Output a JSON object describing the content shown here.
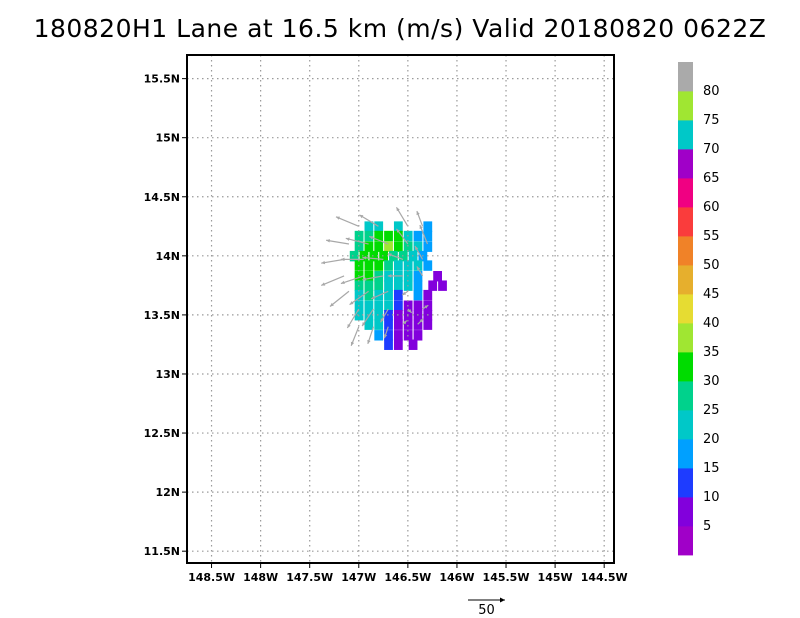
{
  "title": "180820H1 Lane at 16.5 km (m/s) Valid 20180820 0622Z",
  "chart_data": {
    "type": "heatmap",
    "title": "180820H1 Lane at 16.5 km (m/s) Valid 20180820 0622Z",
    "variable": "wind speed",
    "units": "m/s",
    "x_ticks": [
      "148.5W",
      "148W",
      "147.5W",
      "147W",
      "146.5W",
      "146W",
      "145.5W",
      "145W",
      "144.5W"
    ],
    "y_ticks": [
      "11.5N",
      "12N",
      "12.5N",
      "13N",
      "13.5N",
      "14N",
      "14.5N",
      "15N",
      "15.5N"
    ],
    "xlim": [
      -148.75,
      -144.4
    ],
    "ylim": [
      11.4,
      15.7
    ],
    "grid": true,
    "colorbar": {
      "placement": "right",
      "labels": [
        "5",
        "10",
        "15",
        "20",
        "25",
        "30",
        "35",
        "40",
        "45",
        "50",
        "55",
        "60",
        "65",
        "70",
        "75",
        "80"
      ],
      "colors": [
        "#a000c8",
        "#8200dc",
        "#1e3cff",
        "#00a0ff",
        "#00c8c8",
        "#00d28c",
        "#00dc00",
        "#a0e632",
        "#e6dc32",
        "#e6af2d",
        "#f08228",
        "#fa3c3c",
        "#f00082",
        "#a000c8",
        "#00c8c8",
        "#a0e632",
        "#aaaaaa"
      ]
    },
    "wind_vectors": {
      "color": "#a8a8a8",
      "reference_vector_label": "50",
      "reference_vector_value": 50
    },
    "cells": {
      "dx": 0.0833,
      "dy": 0.0833,
      "values": [
        {
          "lon": -146.9,
          "lat": 14.25,
          "v": 24
        },
        {
          "lon": -146.8,
          "lat": 14.25,
          "v": 22
        },
        {
          "lon": -146.6,
          "lat": 14.25,
          "v": 22
        },
        {
          "lon": -146.3,
          "lat": 14.25,
          "v": 18
        },
        {
          "lon": -147.0,
          "lat": 14.17,
          "v": 26
        },
        {
          "lon": -146.9,
          "lat": 14.17,
          "v": 28
        },
        {
          "lon": -146.8,
          "lat": 14.17,
          "v": 30
        },
        {
          "lon": -146.7,
          "lat": 14.17,
          "v": 32
        },
        {
          "lon": -146.6,
          "lat": 14.17,
          "v": 30
        },
        {
          "lon": -146.5,
          "lat": 14.17,
          "v": 24
        },
        {
          "lon": -146.4,
          "lat": 14.17,
          "v": 18
        },
        {
          "lon": -146.3,
          "lat": 14.17,
          "v": 16
        },
        {
          "lon": -147.0,
          "lat": 14.08,
          "v": 28
        },
        {
          "lon": -146.9,
          "lat": 14.08,
          "v": 30
        },
        {
          "lon": -146.8,
          "lat": 14.08,
          "v": 33
        },
        {
          "lon": -146.7,
          "lat": 14.08,
          "v": 36
        },
        {
          "lon": -146.6,
          "lat": 14.08,
          "v": 34
        },
        {
          "lon": -146.5,
          "lat": 14.08,
          "v": 26
        },
        {
          "lon": -146.4,
          "lat": 14.08,
          "v": 20
        },
        {
          "lon": -146.3,
          "lat": 14.08,
          "v": 16
        },
        {
          "lon": -147.05,
          "lat": 14.0,
          "v": 26
        },
        {
          "lon": -146.95,
          "lat": 14.0,
          "v": 32
        },
        {
          "lon": -146.85,
          "lat": 14.0,
          "v": 31
        },
        {
          "lon": -146.75,
          "lat": 14.0,
          "v": 30
        },
        {
          "lon": -146.65,
          "lat": 14.0,
          "v": 28
        },
        {
          "lon": -146.55,
          "lat": 14.0,
          "v": 25
        },
        {
          "lon": -146.45,
          "lat": 14.0,
          "v": 22
        },
        {
          "lon": -146.35,
          "lat": 14.0,
          "v": 18
        },
        {
          "lon": -147.0,
          "lat": 13.92,
          "v": 30
        },
        {
          "lon": -146.9,
          "lat": 13.92,
          "v": 32
        },
        {
          "lon": -146.8,
          "lat": 13.92,
          "v": 30
        },
        {
          "lon": -146.7,
          "lat": 13.92,
          "v": 26
        },
        {
          "lon": -146.6,
          "lat": 13.92,
          "v": 24
        },
        {
          "lon": -146.5,
          "lat": 13.92,
          "v": 22
        },
        {
          "lon": -146.4,
          "lat": 13.92,
          "v": 20
        },
        {
          "lon": -146.3,
          "lat": 13.92,
          "v": 17
        },
        {
          "lon": -147.0,
          "lat": 13.83,
          "v": 31
        },
        {
          "lon": -146.9,
          "lat": 13.83,
          "v": 30
        },
        {
          "lon": -146.8,
          "lat": 13.83,
          "v": 28
        },
        {
          "lon": -146.7,
          "lat": 13.83,
          "v": 24
        },
        {
          "lon": -146.6,
          "lat": 13.83,
          "v": 22
        },
        {
          "lon": -146.5,
          "lat": 13.83,
          "v": 21
        },
        {
          "lon": -146.4,
          "lat": 13.83,
          "v": 19
        },
        {
          "lon": -146.2,
          "lat": 13.83,
          "v": 8
        },
        {
          "lon": -147.0,
          "lat": 13.75,
          "v": 28
        },
        {
          "lon": -146.9,
          "lat": 13.75,
          "v": 26
        },
        {
          "lon": -146.8,
          "lat": 13.75,
          "v": 25
        },
        {
          "lon": -146.7,
          "lat": 13.75,
          "v": 23
        },
        {
          "lon": -146.6,
          "lat": 13.75,
          "v": 20
        },
        {
          "lon": -146.5,
          "lat": 13.75,
          "v": 22
        },
        {
          "lon": -146.4,
          "lat": 13.75,
          "v": 16
        },
        {
          "lon": -146.25,
          "lat": 13.75,
          "v": 8
        },
        {
          "lon": -146.15,
          "lat": 13.75,
          "v": 7
        },
        {
          "lon": -147.0,
          "lat": 13.67,
          "v": 24
        },
        {
          "lon": -146.9,
          "lat": 13.67,
          "v": 25
        },
        {
          "lon": -146.8,
          "lat": 13.67,
          "v": 24
        },
        {
          "lon": -146.7,
          "lat": 13.67,
          "v": 22
        },
        {
          "lon": -146.6,
          "lat": 13.67,
          "v": 12
        },
        {
          "lon": -146.4,
          "lat": 13.67,
          "v": 18
        },
        {
          "lon": -146.3,
          "lat": 13.67,
          "v": 8
        },
        {
          "lon": -147.0,
          "lat": 13.58,
          "v": 24
        },
        {
          "lon": -146.9,
          "lat": 13.58,
          "v": 23
        },
        {
          "lon": -146.8,
          "lat": 13.58,
          "v": 22
        },
        {
          "lon": -146.7,
          "lat": 13.58,
          "v": 20
        },
        {
          "lon": -146.6,
          "lat": 13.58,
          "v": 10
        },
        {
          "lon": -146.5,
          "lat": 13.58,
          "v": 7
        },
        {
          "lon": -146.4,
          "lat": 13.58,
          "v": 6
        },
        {
          "lon": -146.3,
          "lat": 13.58,
          "v": 6
        },
        {
          "lon": -147.0,
          "lat": 13.5,
          "v": 23
        },
        {
          "lon": -146.9,
          "lat": 13.5,
          "v": 22
        },
        {
          "lon": -146.8,
          "lat": 13.5,
          "v": 20
        },
        {
          "lon": -146.7,
          "lat": 13.5,
          "v": 12
        },
        {
          "lon": -146.6,
          "lat": 13.5,
          "v": 7
        },
        {
          "lon": -146.5,
          "lat": 13.5,
          "v": 6
        },
        {
          "lon": -146.4,
          "lat": 13.5,
          "v": 6
        },
        {
          "lon": -146.3,
          "lat": 13.5,
          "v": 7
        },
        {
          "lon": -146.9,
          "lat": 13.42,
          "v": 22
        },
        {
          "lon": -146.8,
          "lat": 13.42,
          "v": 20
        },
        {
          "lon": -146.7,
          "lat": 13.42,
          "v": 11
        },
        {
          "lon": -146.6,
          "lat": 13.42,
          "v": 7
        },
        {
          "lon": -146.5,
          "lat": 13.42,
          "v": 6
        },
        {
          "lon": -146.4,
          "lat": 13.42,
          "v": 6
        },
        {
          "lon": -146.3,
          "lat": 13.42,
          "v": 7
        },
        {
          "lon": -146.8,
          "lat": 13.33,
          "v": 18
        },
        {
          "lon": -146.7,
          "lat": 13.33,
          "v": 12
        },
        {
          "lon": -146.6,
          "lat": 13.33,
          "v": 7
        },
        {
          "lon": -146.5,
          "lat": 13.33,
          "v": 6
        },
        {
          "lon": -146.4,
          "lat": 13.33,
          "v": 7
        },
        {
          "lon": -146.7,
          "lat": 13.25,
          "v": 10
        },
        {
          "lon": -146.6,
          "lat": 13.25,
          "v": 7
        },
        {
          "lon": -146.45,
          "lat": 13.25,
          "v": 8
        }
      ]
    },
    "vectors": [
      {
        "lon": -147.0,
        "lat": 14.25,
        "u": -12,
        "v": 5
      },
      {
        "lon": -146.8,
        "lat": 14.25,
        "u": -10,
        "v": 6
      },
      {
        "lon": -146.5,
        "lat": 14.25,
        "u": -6,
        "v": 10
      },
      {
        "lon": -146.35,
        "lat": 14.25,
        "u": -3,
        "v": 8
      },
      {
        "lon": -147.1,
        "lat": 14.1,
        "u": -12,
        "v": 2
      },
      {
        "lon": -146.9,
        "lat": 14.1,
        "u": -12,
        "v": 3
      },
      {
        "lon": -146.7,
        "lat": 14.1,
        "u": -10,
        "v": 4
      },
      {
        "lon": -146.5,
        "lat": 14.1,
        "u": -6,
        "v": 8
      },
      {
        "lon": -146.3,
        "lat": 14.1,
        "u": -4,
        "v": 10
      },
      {
        "lon": -147.15,
        "lat": 13.97,
        "u": -12,
        "v": -2
      },
      {
        "lon": -146.95,
        "lat": 13.97,
        "u": -12,
        "v": 0
      },
      {
        "lon": -146.75,
        "lat": 13.97,
        "u": -11,
        "v": 1
      },
      {
        "lon": -146.55,
        "lat": 13.97,
        "u": -8,
        "v": 3
      },
      {
        "lon": -146.35,
        "lat": 13.97,
        "u": -4,
        "v": 7
      },
      {
        "lon": -147.15,
        "lat": 13.83,
        "u": -12,
        "v": -5
      },
      {
        "lon": -146.95,
        "lat": 13.83,
        "u": -12,
        "v": -4
      },
      {
        "lon": -146.75,
        "lat": 13.83,
        "u": -11,
        "v": -2
      },
      {
        "lon": -146.55,
        "lat": 13.83,
        "u": -8,
        "v": 0
      },
      {
        "lon": -146.35,
        "lat": 13.83,
        "u": -3,
        "v": 5
      },
      {
        "lon": -147.1,
        "lat": 13.7,
        "u": -10,
        "v": -8
      },
      {
        "lon": -146.9,
        "lat": 13.7,
        "u": -10,
        "v": -7
      },
      {
        "lon": -146.7,
        "lat": 13.7,
        "u": -9,
        "v": -4
      },
      {
        "lon": -146.5,
        "lat": 13.7,
        "u": -3,
        "v": -2
      },
      {
        "lon": -147.0,
        "lat": 13.55,
        "u": -6,
        "v": -10
      },
      {
        "lon": -146.85,
        "lat": 13.55,
        "u": -6,
        "v": -9
      },
      {
        "lon": -146.7,
        "lat": 13.55,
        "u": -4,
        "v": -7
      },
      {
        "lon": -146.5,
        "lat": 13.55,
        "u": 2,
        "v": -2
      },
      {
        "lon": -146.35,
        "lat": 13.55,
        "u": 3,
        "v": 2
      },
      {
        "lon": -147.0,
        "lat": 13.4,
        "u": -4,
        "v": -10
      },
      {
        "lon": -146.85,
        "lat": 13.4,
        "u": -3,
        "v": -9
      },
      {
        "lon": -146.7,
        "lat": 13.4,
        "u": -2,
        "v": -6
      },
      {
        "lon": -146.55,
        "lat": 13.42,
        "u": 2,
        "v": 2
      },
      {
        "lon": -146.4,
        "lat": 13.42,
        "u": 3,
        "v": 3
      }
    ]
  }
}
